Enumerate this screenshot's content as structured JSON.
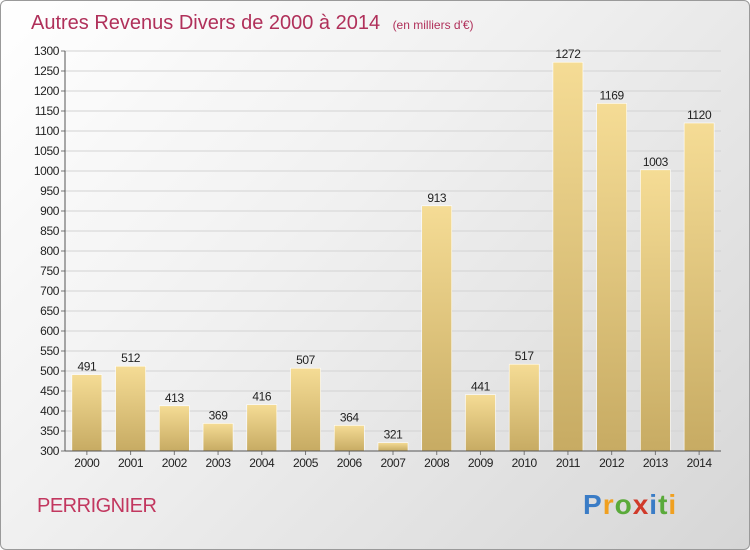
{
  "chart_data": {
    "type": "bar",
    "title": "Autres Revenus Divers de 2000 à 2014",
    "subtitle": "(en milliers d'€)",
    "categories": [
      "2000",
      "2001",
      "2002",
      "2003",
      "2004",
      "2005",
      "2006",
      "2007",
      "2008",
      "2009",
      "2010",
      "2011",
      "2012",
      "2013",
      "2014"
    ],
    "values": [
      491,
      512,
      413,
      369,
      416,
      507,
      364,
      321,
      913,
      441,
      517,
      1272,
      1169,
      1003,
      1120
    ],
    "ylim": [
      300,
      1300
    ],
    "ytick_step": 50,
    "grid": true,
    "bar_color_light": "#f5dc95",
    "bar_color_dark": "#c7ab63"
  },
  "place": "PERRIGNIER",
  "brand": {
    "text": "Proxiti",
    "letters": [
      "P",
      "r",
      "o",
      "x",
      "i",
      "t",
      "i"
    ],
    "colors": [
      "#3a7cc6",
      "#f0a020",
      "#5aaa3a",
      "#d03a2a",
      "#3a7cc6",
      "#5aaa3a",
      "#f0a020"
    ]
  },
  "colors": {
    "title": "#b0305a",
    "place": "#c2375f"
  }
}
